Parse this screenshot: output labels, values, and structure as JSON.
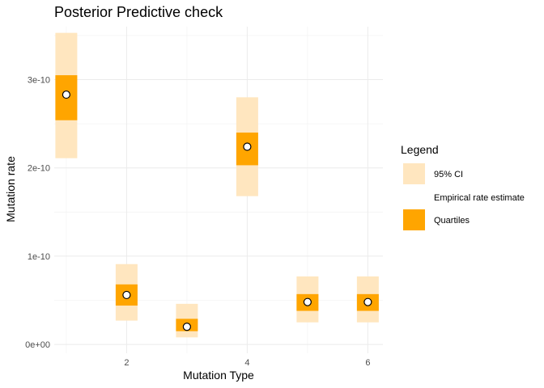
{
  "chart_data": {
    "type": "box",
    "title": "Posterior Predictive check",
    "xlabel": "Mutation Type",
    "ylabel": "Mutation rate",
    "x": [
      1,
      2,
      3,
      4,
      5,
      6
    ],
    "x_ticks": [
      2,
      4,
      6
    ],
    "x_tick_labels": [
      "2",
      "4",
      "6"
    ],
    "xlim": [
      0.8,
      6.25
    ],
    "y_ticks": [
      0,
      1e-10,
      2e-10,
      3e-10
    ],
    "y_tick_labels": [
      "0e+00",
      "1e-10",
      "2e-10",
      "3e-10"
    ],
    "ylim": [
      -1e-11,
      3.6e-10
    ],
    "series": [
      {
        "name": "95% CI",
        "color": "#ffe6bf",
        "lower": [
          2.11e-10,
          2.7e-11,
          8e-12,
          1.68e-10,
          2.5e-11,
          2.5e-11
        ],
        "upper": [
          3.53e-10,
          9.1e-11,
          4.6e-11,
          2.8e-10,
          7.7e-11,
          7.7e-11
        ]
      },
      {
        "name": "Empirical rate estimate",
        "marker": "white-circle",
        "values": [
          2.83e-10,
          5.6e-11,
          2e-11,
          2.24e-10,
          4.8e-11,
          4.8e-11
        ]
      },
      {
        "name": "Quartiles",
        "color": "#ffa500",
        "lower": [
          2.54e-10,
          4.4e-11,
          1.5e-11,
          2.03e-10,
          3.8e-11,
          3.8e-11
        ],
        "upper": [
          3.05e-10,
          6.8e-11,
          2.9e-11,
          2.4e-10,
          5.7e-11,
          5.7e-11
        ]
      }
    ],
    "legend": {
      "title": "Legend",
      "position": "right",
      "entries": [
        "95% CI",
        "Empirical rate estimate",
        "Quartiles"
      ]
    },
    "grid": true
  }
}
